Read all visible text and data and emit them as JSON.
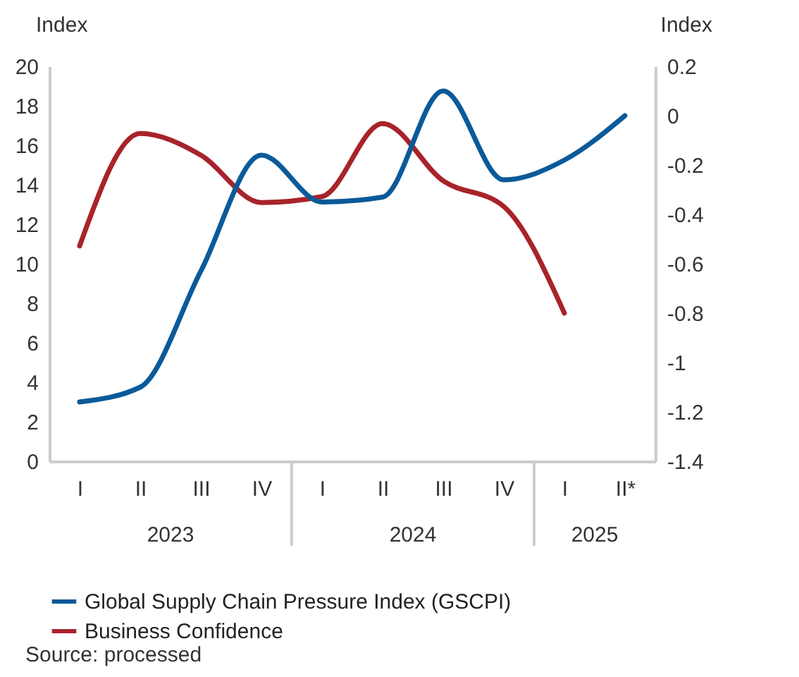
{
  "chart_data": {
    "type": "line",
    "ylabel": "Index",
    "y2label": "Index",
    "categories": [
      "I",
      "II",
      "III",
      "IV",
      "I",
      "II",
      "III",
      "IV",
      "I",
      "II*"
    ],
    "series": [
      {
        "name": "Global Supply Chain Pressure Index (GSCPI)",
        "color": "#0b5a99",
        "axis": "y2",
        "values": [
          -1.16,
          -1.1,
          -0.63,
          -0.16,
          -0.35,
          -0.33,
          0.1,
          -0.26,
          -0.18,
          0.0
        ]
      },
      {
        "name": "Business Confidence",
        "color": "#a8232a",
        "values": [
          10.9,
          16.6,
          15.5,
          13.1,
          13.4,
          17.1,
          14.2,
          12.9,
          7.5,
          null
        ]
      }
    ],
    "ylim": [
      0,
      20
    ],
    "yticks": [
      0,
      2,
      4,
      6,
      8,
      10,
      12,
      14,
      16,
      18,
      20
    ],
    "y2lim": [
      -1.4,
      0.2
    ],
    "y2ticks": [
      -1.4,
      -1.2,
      {
        "value": -1,
        "label": "-1"
      },
      -0.8,
      -0.6,
      -0.4,
      -0.2,
      {
        "value": 0,
        "label": "0"
      },
      0.2
    ],
    "grid": false,
    "legend": "bottom",
    "annotations": [
      "2023",
      "2024",
      "2025",
      "Source: processed"
    ]
  }
}
